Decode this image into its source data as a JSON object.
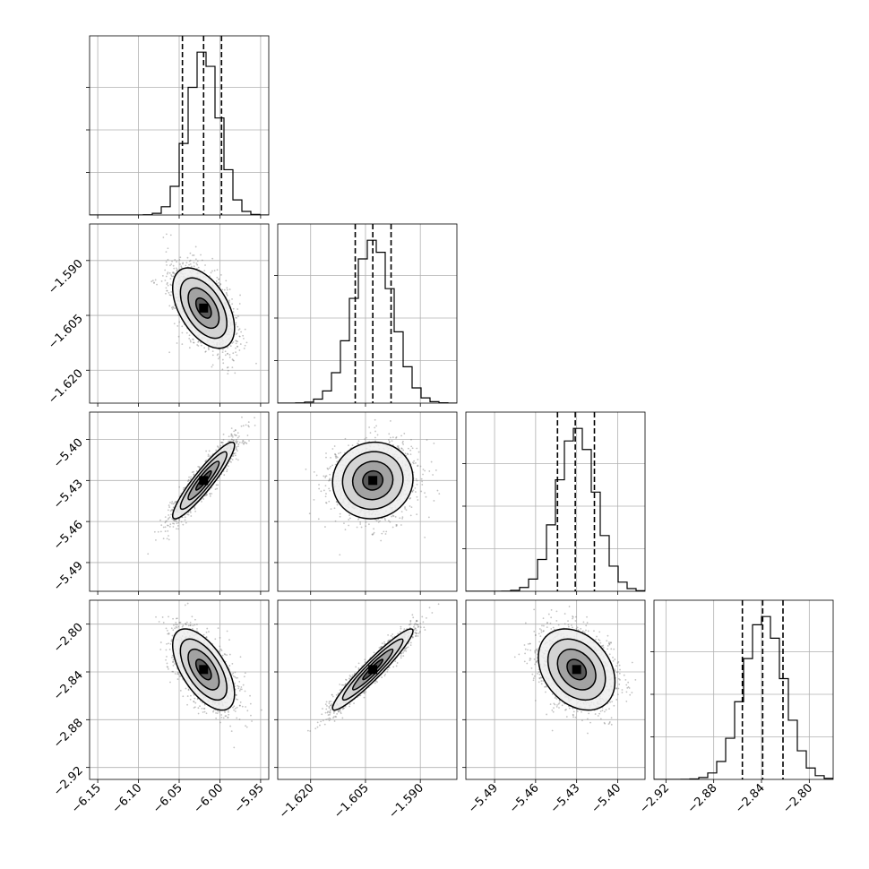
{
  "chart_data": {
    "type": "corner",
    "n_params": 4,
    "grid": true,
    "params": [
      {
        "range": [
          -6.16,
          -5.94
        ],
        "mean": -6.02,
        "sd": 0.019,
        "ticks": [
          -6.15,
          -6.1,
          -6.05,
          -6.0,
          -5.95
        ],
        "tick_labels": [
          "−6.15",
          "−6.10",
          "−6.05",
          "−6.00",
          "−5.95"
        ],
        "quantiles": [
          -6.046,
          -6.02,
          -5.998
        ]
      },
      {
        "range": [
          -1.629,
          -1.58
        ],
        "mean": -1.603,
        "sd": 0.0055,
        "ticks": [
          -1.62,
          -1.605,
          -1.59
        ],
        "tick_labels": [
          "−1.620",
          "−1.605",
          "−1.590"
        ],
        "quantiles": [
          -1.6078,
          -1.603,
          -1.598
        ]
      },
      {
        "range": [
          -5.511,
          -5.38
        ],
        "mean": -5.43,
        "sd": 0.014,
        "ticks": [
          -5.49,
          -5.46,
          -5.43,
          -5.4
        ],
        "tick_labels": [
          "−5.49",
          "−5.46",
          "−5.43",
          "−5.40"
        ],
        "quantiles": [
          -5.444,
          -5.431,
          -5.417
        ]
      },
      {
        "range": [
          -2.93,
          -2.78
        ],
        "mean": -2.838,
        "sd": 0.017,
        "ticks": [
          -2.92,
          -2.88,
          -2.84,
          -2.8
        ],
        "tick_labels": [
          "−2.92",
          "−2.88",
          "−2.84",
          "−2.80"
        ],
        "quantiles": [
          -2.856,
          -2.839,
          -2.822
        ]
      }
    ],
    "correlations": {
      "1-0": -0.5,
      "2-0": 0.92,
      "2-1": 0.05,
      "3-0": -0.6,
      "3-1": 0.95,
      "3-2": -0.3
    },
    "hist_bins": 20,
    "samples_per_panel": 1800,
    "contour_levels_sigma": [
      0.5,
      1.0,
      1.5,
      2.0
    ],
    "colors": {
      "ink": "#000000",
      "grid": "#b0b0b0",
      "points": "#7a7a7a"
    }
  }
}
